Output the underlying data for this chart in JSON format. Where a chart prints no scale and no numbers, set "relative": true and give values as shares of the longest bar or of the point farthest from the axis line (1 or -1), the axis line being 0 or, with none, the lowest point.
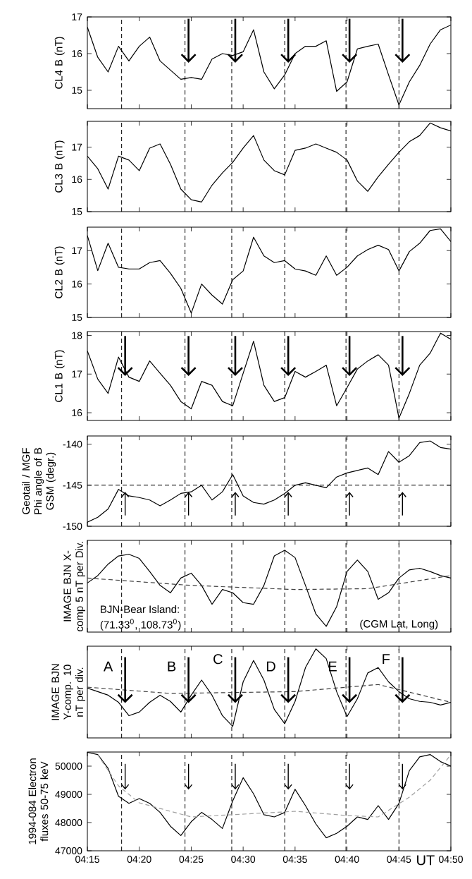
{
  "chart_data": [
    {
      "type": "line",
      "ylabel": "CL4 B (nT)",
      "xlim": [
        4.25,
        4.8333
      ],
      "ylim": [
        14.5,
        17
      ],
      "yticks": [
        15,
        16,
        17
      ],
      "tick_labels": "y",
      "xticks": [
        {
          "value": 4.25,
          "label": null
        },
        {
          "value": 4.3333,
          "label": null
        },
        {
          "value": 4.4167,
          "label": null
        },
        {
          "value": 4.5,
          "label": null
        },
        {
          "value": 4.5833,
          "label": null
        },
        {
          "value": 4.6667,
          "label": null
        },
        {
          "value": 4.75,
          "label": null
        },
        {
          "value": 4.8333,
          "label": null
        }
      ],
      "x": [
        4.25,
        4.2667,
        4.2833,
        4.3,
        4.3167,
        4.3333,
        4.35,
        4.3667,
        4.3833,
        4.4,
        4.4167,
        4.4333,
        4.45,
        4.4667,
        4.4833,
        4.5,
        4.5167,
        4.5333,
        4.55,
        4.5667,
        4.5833,
        4.6,
        4.6167,
        4.6333,
        4.65,
        4.6667,
        4.6833,
        4.7,
        4.7167,
        4.7333,
        4.75,
        4.7667,
        4.7833,
        4.8,
        4.8167,
        4.8333
      ],
      "series": [
        {
          "color": "#000000",
          "values": [
            16.72,
            15.9,
            15.5,
            16.2,
            15.8,
            16.2,
            16.45,
            15.8,
            15.55,
            15.3,
            15.35,
            15.3,
            15.85,
            16.0,
            15.95,
            16.05,
            16.65,
            15.5,
            15.04,
            15.42,
            16.0,
            16.2,
            16.2,
            16.35,
            14.97,
            15.23,
            16.13,
            16.2,
            16.26,
            15.42,
            14.6,
            15.23,
            15.68,
            16.26,
            16.65,
            16.78
          ]
        }
      ],
      "ref_lines": [
        {
          "axis": "x",
          "value": 4.305,
          "line_style": "dashed"
        },
        {
          "axis": "x",
          "value": 4.4067,
          "line_style": "dashed"
        },
        {
          "axis": "x",
          "value": 4.4817,
          "line_style": "dashed"
        },
        {
          "axis": "x",
          "value": 4.5667,
          "line_style": "dashed"
        },
        {
          "axis": "x",
          "value": 4.665,
          "line_style": "dashed"
        },
        {
          "axis": "x",
          "value": 4.75,
          "line_style": "dashed"
        }
      ]
    },
    {
      "type": "line",
      "ylabel": "CL3 B (nT)",
      "xlim": [
        4.25,
        4.8333
      ],
      "ylim": [
        15,
        17.8
      ],
      "yticks": [
        15,
        16,
        17
      ],
      "tick_labels": "y",
      "xticks": [
        {
          "value": 4.25,
          "label": null
        },
        {
          "value": 4.3333,
          "label": null
        },
        {
          "value": 4.4167,
          "label": null
        },
        {
          "value": 4.5,
          "label": null
        },
        {
          "value": 4.5833,
          "label": null
        },
        {
          "value": 4.6667,
          "label": null
        },
        {
          "value": 4.75,
          "label": null
        },
        {
          "value": 4.8333,
          "label": null
        }
      ],
      "x": [
        4.25,
        4.2667,
        4.2833,
        4.3,
        4.3167,
        4.3333,
        4.35,
        4.3667,
        4.3833,
        4.4,
        4.4167,
        4.4333,
        4.45,
        4.4667,
        4.4833,
        4.5,
        4.5167,
        4.5333,
        4.55,
        4.5667,
        4.5833,
        4.6,
        4.6167,
        4.6333,
        4.65,
        4.6667,
        4.6833,
        4.7,
        4.7167,
        4.7333,
        4.75,
        4.7667,
        4.7833,
        4.8,
        4.8167,
        4.8333
      ],
      "series": [
        {
          "color": "#000000",
          "values": [
            16.72,
            16.33,
            15.7,
            16.72,
            16.6,
            16.27,
            16.97,
            17.1,
            16.47,
            15.7,
            15.37,
            15.3,
            15.82,
            16.2,
            16.53,
            16.97,
            17.36,
            16.6,
            16.27,
            16.14,
            16.9,
            16.97,
            17.1,
            16.97,
            16.84,
            16.6,
            15.95,
            15.63,
            16.08,
            16.47,
            16.84,
            17.17,
            17.36,
            17.75,
            17.6,
            17.5
          ]
        }
      ],
      "ref_lines": [
        {
          "axis": "x",
          "value": 4.305,
          "line_style": "dashed"
        },
        {
          "axis": "x",
          "value": 4.4067,
          "line_style": "dashed"
        },
        {
          "axis": "x",
          "value": 4.4817,
          "line_style": "dashed"
        },
        {
          "axis": "x",
          "value": 4.5667,
          "line_style": "dashed"
        },
        {
          "axis": "x",
          "value": 4.665,
          "line_style": "dashed"
        },
        {
          "axis": "x",
          "value": 4.75,
          "line_style": "dashed"
        }
      ]
    },
    {
      "type": "line",
      "ylabel": "CL2 B (nT)",
      "xlim": [
        4.25,
        4.8333
      ],
      "ylim": [
        15,
        17.7
      ],
      "yticks": [
        15,
        16,
        17
      ],
      "tick_labels": "y",
      "xticks": [
        {
          "value": 4.25,
          "label": null
        },
        {
          "value": 4.3333,
          "label": null
        },
        {
          "value": 4.4167,
          "label": null
        },
        {
          "value": 4.5,
          "label": null
        },
        {
          "value": 4.5833,
          "label": null
        },
        {
          "value": 4.6667,
          "label": null
        },
        {
          "value": 4.75,
          "label": null
        },
        {
          "value": 4.8333,
          "label": null
        }
      ],
      "x": [
        4.25,
        4.2667,
        4.2833,
        4.3,
        4.3167,
        4.3333,
        4.35,
        4.3667,
        4.3833,
        4.4,
        4.4167,
        4.4333,
        4.45,
        4.4667,
        4.4833,
        4.5,
        4.5167,
        4.5333,
        4.55,
        4.5667,
        4.5833,
        4.6,
        4.6167,
        4.6333,
        4.65,
        4.6667,
        4.6833,
        4.7,
        4.7167,
        4.7333,
        4.75,
        4.7667,
        4.7833,
        4.8,
        4.8167,
        4.8333
      ],
      "series": [
        {
          "color": "#000000",
          "values": [
            17.45,
            16.4,
            17.22,
            16.5,
            16.45,
            16.45,
            16.64,
            16.7,
            16.32,
            15.87,
            15.13,
            16.0,
            15.67,
            15.4,
            16.13,
            16.39,
            17.4,
            16.84,
            16.64,
            16.7,
            16.45,
            16.39,
            16.26,
            16.84,
            16.26,
            16.5,
            16.84,
            17.03,
            17.16,
            17.03,
            16.39,
            16.97,
            17.22,
            17.6,
            17.65,
            17.27
          ]
        }
      ],
      "ref_lines": [
        {
          "axis": "x",
          "value": 4.305,
          "line_style": "dashed"
        },
        {
          "axis": "x",
          "value": 4.4067,
          "line_style": "dashed"
        },
        {
          "axis": "x",
          "value": 4.4817,
          "line_style": "dashed"
        },
        {
          "axis": "x",
          "value": 4.5667,
          "line_style": "dashed"
        },
        {
          "axis": "x",
          "value": 4.665,
          "line_style": "dashed"
        },
        {
          "axis": "x",
          "value": 4.75,
          "line_style": "dashed"
        }
      ]
    },
    {
      "type": "line",
      "ylabel": "CL1 B (nT)",
      "xlim": [
        4.25,
        4.8333
      ],
      "ylim": [
        15.8,
        18.1
      ],
      "yticks": [
        16,
        17,
        18
      ],
      "tick_labels": "y",
      "xticks": [
        {
          "value": 4.25,
          "label": null
        },
        {
          "value": 4.3333,
          "label": null
        },
        {
          "value": 4.4167,
          "label": null
        },
        {
          "value": 4.5,
          "label": null
        },
        {
          "value": 4.5833,
          "label": null
        },
        {
          "value": 4.6667,
          "label": null
        },
        {
          "value": 4.75,
          "label": null
        },
        {
          "value": 4.8333,
          "label": null
        }
      ],
      "x": [
        4.25,
        4.2667,
        4.2833,
        4.3,
        4.3167,
        4.3333,
        4.35,
        4.3667,
        4.3833,
        4.4,
        4.4167,
        4.4333,
        4.45,
        4.4667,
        4.4833,
        4.5,
        4.5167,
        4.5333,
        4.55,
        4.5667,
        4.5833,
        4.6,
        4.6167,
        4.6333,
        4.65,
        4.6667,
        4.6833,
        4.7,
        4.7167,
        4.7333,
        4.75,
        4.7667,
        4.7833,
        4.8,
        4.8167,
        4.8333
      ],
      "series": [
        {
          "color": "#000000",
          "values": [
            17.6,
            16.87,
            16.5,
            17.44,
            16.92,
            16.81,
            17.34,
            17.02,
            16.71,
            16.29,
            16.1,
            16.81,
            16.71,
            16.29,
            16.18,
            17.02,
            17.85,
            16.71,
            16.29,
            16.39,
            17.07,
            16.92,
            17.07,
            17.23,
            16.18,
            16.65,
            17.13,
            17.34,
            17.5,
            17.23,
            15.86,
            16.5,
            17.23,
            17.54,
            18.06,
            17.9
          ]
        }
      ],
      "ref_lines": [
        {
          "axis": "x",
          "value": 4.305,
          "line_style": "dashed"
        },
        {
          "axis": "x",
          "value": 4.4067,
          "line_style": "dashed"
        },
        {
          "axis": "x",
          "value": 4.4817,
          "line_style": "dashed"
        },
        {
          "axis": "x",
          "value": 4.5667,
          "line_style": "dashed"
        },
        {
          "axis": "x",
          "value": 4.665,
          "line_style": "dashed"
        },
        {
          "axis": "x",
          "value": 4.75,
          "line_style": "dashed"
        }
      ]
    },
    {
      "type": "line",
      "ylabel": "Geotail / MGF Phi angle of B GSM (degr.)",
      "xlim": [
        4.25,
        4.8333
      ],
      "ylim": [
        -150,
        -139
      ],
      "yticks": [
        -150,
        -145,
        -140
      ],
      "tick_labels": "y",
      "xticks": [
        {
          "value": 4.25,
          "label": null
        },
        {
          "value": 4.3333,
          "label": null
        },
        {
          "value": 4.4167,
          "label": null
        },
        {
          "value": 4.5,
          "label": null
        },
        {
          "value": 4.5833,
          "label": null
        },
        {
          "value": 4.6667,
          "label": null
        },
        {
          "value": 4.75,
          "label": null
        },
        {
          "value": 4.8333,
          "label": null
        }
      ],
      "x": [
        4.25,
        4.2667,
        4.2833,
        4.3,
        4.3167,
        4.3333,
        4.35,
        4.3667,
        4.3833,
        4.4,
        4.4167,
        4.4333,
        4.45,
        4.4667,
        4.4833,
        4.5,
        4.5167,
        4.5333,
        4.55,
        4.5667,
        4.5833,
        4.6,
        4.6167,
        4.6333,
        4.65,
        4.6667,
        4.6833,
        4.7,
        4.7167,
        4.7333,
        4.75,
        4.7667,
        4.7833,
        4.8,
        4.8167,
        4.8333
      ],
      "series": [
        {
          "color": "#000000",
          "values": [
            -149.5,
            -148.9,
            -147.9,
            -145.5,
            -146.3,
            -146.5,
            -146.8,
            -147.5,
            -146.8,
            -146.0,
            -145.8,
            -145.0,
            -146.8,
            -145.8,
            -143.7,
            -146.3,
            -147.1,
            -147.3,
            -146.8,
            -146.0,
            -145.0,
            -144.7,
            -145.0,
            -145.3,
            -144.0,
            -143.5,
            -143.2,
            -142.9,
            -143.7,
            -140.9,
            -142.2,
            -141.4,
            -139.8,
            -139.6,
            -140.4,
            -140.6
          ]
        }
      ],
      "ref_lines": [
        {
          "axis": "x",
          "value": 4.305,
          "line_style": "dashed"
        },
        {
          "axis": "x",
          "value": 4.4067,
          "line_style": "dashed"
        },
        {
          "axis": "x",
          "value": 4.4817,
          "line_style": "dashed"
        },
        {
          "axis": "x",
          "value": 4.5667,
          "line_style": "dashed"
        },
        {
          "axis": "x",
          "value": 4.665,
          "line_style": "dashed"
        },
        {
          "axis": "x",
          "value": 4.75,
          "line_style": "dashed"
        },
        {
          "axis": "y",
          "value": -145,
          "line_style": "dashed"
        }
      ]
    },
    {
      "type": "line",
      "relative": true,
      "ylabel": "IMAGE BJN X-comp 5 nT per Div.",
      "xlim": [
        4.25,
        4.8333
      ],
      "tick_labels": false,
      "xticks": [
        {
          "value": 4.25,
          "label": null
        },
        {
          "value": 4.3333,
          "label": null
        },
        {
          "value": 4.4167,
          "label": null
        },
        {
          "value": 4.5,
          "label": null
        },
        {
          "value": 4.5833,
          "label": null
        },
        {
          "value": 4.6667,
          "label": null
        },
        {
          "value": 4.75,
          "label": null
        },
        {
          "value": 4.8333,
          "label": null
        }
      ],
      "x": [
        4.25,
        4.2667,
        4.2833,
        4.3,
        4.3167,
        4.3333,
        4.35,
        4.3667,
        4.3833,
        4.4,
        4.4167,
        4.4333,
        4.45,
        4.4667,
        4.4833,
        4.5,
        4.5167,
        4.5333,
        4.55,
        4.5667,
        4.5833,
        4.6,
        4.6167,
        4.6333,
        4.65,
        4.6667,
        4.6833,
        4.7,
        4.7167,
        4.7333,
        4.75,
        4.7667,
        4.7833,
        4.8,
        4.8167,
        4.8333
      ],
      "series": [
        {
          "color": "#000000",
          "values": [
            0.6,
            0.69,
            0.83,
            0.93,
            0.95,
            0.9,
            0.74,
            0.57,
            0.48,
            0.66,
            0.72,
            0.57,
            0.34,
            0.52,
            0.48,
            0.36,
            0.34,
            0.57,
            0.93,
            1,
            0.91,
            0.57,
            0.22,
            0.07,
            0.31,
            0.74,
            0.88,
            0.74,
            0.4,
            0.48,
            0.66,
            0.76,
            0.78,
            0.74,
            0.69,
            0.66
          ]
        },
        {
          "color": "#404040",
          "line_style": "dashed",
          "x": [
            4.25,
            4.4167,
            4.5833,
            4.7,
            4.8333
          ],
          "values": [
            0.66,
            0.57,
            0.52,
            0.53,
            0.69
          ]
        }
      ],
      "annotations": [
        "BJN-Bear Island:",
        "(71.33$^{0}$, 108.73$^{0}$)",
        "(CGM Lat, Long)"
      ],
      "ref_lines": [
        {
          "axis": "x",
          "value": 4.305,
          "line_style": "dashed"
        },
        {
          "axis": "x",
          "value": 4.4067,
          "line_style": "dashed"
        },
        {
          "axis": "x",
          "value": 4.4817,
          "line_style": "dashed"
        },
        {
          "axis": "x",
          "value": 4.5667,
          "line_style": "dashed"
        },
        {
          "axis": "x",
          "value": 4.665,
          "line_style": "dashed"
        },
        {
          "axis": "x",
          "value": 4.75,
          "line_style": "dashed"
        }
      ]
    },
    {
      "type": "line",
      "relative": true,
      "ylabel": "IMAGE BJN Y-comp. 10 nT per div.",
      "xlim": [
        4.25,
        4.8333
      ],
      "tick_labels": false,
      "xticks": [
        {
          "value": 4.25,
          "label": null
        },
        {
          "value": 4.3333,
          "label": null
        },
        {
          "value": 4.4167,
          "label": null
        },
        {
          "value": 4.5,
          "label": null
        },
        {
          "value": 4.5833,
          "label": null
        },
        {
          "value": 4.6667,
          "label": null
        },
        {
          "value": 4.75,
          "label": null
        },
        {
          "value": 4.8333,
          "label": null
        }
      ],
      "x": [
        4.25,
        4.2667,
        4.2833,
        4.3,
        4.3167,
        4.3333,
        4.35,
        4.3667,
        4.3833,
        4.4,
        4.4167,
        4.4333,
        4.45,
        4.4667,
        4.4833,
        4.5,
        4.5167,
        4.5333,
        4.55,
        4.5667,
        4.5833,
        4.6,
        4.6167,
        4.6333,
        4.65,
        4.6667,
        4.6833,
        4.7,
        4.7167,
        4.7333,
        4.75,
        4.7667,
        4.7833,
        4.8,
        4.8167,
        4.8333
      ],
      "series": [
        {
          "color": "#000000",
          "values": [
            0.56,
            0.52,
            0.48,
            0.4,
            0.25,
            0.29,
            0.4,
            0.48,
            0.41,
            0.29,
            0.48,
            0.65,
            0.48,
            0.25,
            0.13,
            0.63,
            0.87,
            0.65,
            0.32,
            0.16,
            0.41,
            0.79,
            1,
            0.89,
            0.52,
            0.24,
            0.44,
            0.73,
            0.79,
            0.63,
            0.52,
            0.44,
            0.41,
            0.4,
            0.37,
            0.4
          ]
        },
        {
          "color": "#404040",
          "line_style": "dashed",
          "x": [
            4.25,
            4.3833,
            4.5833,
            4.7167,
            4.8333
          ],
          "values": [
            0.57,
            0.5,
            0.52,
            0.6,
            0.4
          ]
        }
      ],
      "annotations": [
        "A",
        "B",
        "C",
        "D",
        "E",
        "F"
      ],
      "ref_lines": [
        {
          "axis": "x",
          "value": 4.305,
          "line_style": "dashed"
        },
        {
          "axis": "x",
          "value": 4.4067,
          "line_style": "dashed"
        },
        {
          "axis": "x",
          "value": 4.4817,
          "line_style": "dashed"
        },
        {
          "axis": "x",
          "value": 4.5667,
          "line_style": "dashed"
        },
        {
          "axis": "x",
          "value": 4.665,
          "line_style": "dashed"
        },
        {
          "axis": "x",
          "value": 4.75,
          "line_style": "dashed"
        }
      ]
    },
    {
      "type": "line",
      "ylabel": "1994-084 Electron fluxes 50-75 keV",
      "xlabel": "UT",
      "xlim": [
        4.25,
        4.8333
      ],
      "ylim": [
        47000,
        50500
      ],
      "yticks": [
        47000,
        48000,
        49000,
        50000
      ],
      "xticks": [
        {
          "value": 4.25,
          "label": "04:15"
        },
        {
          "value": 4.3333,
          "label": "04:20"
        },
        {
          "value": 4.4167,
          "label": "04:25"
        },
        {
          "value": 4.5,
          "label": "04:30"
        },
        {
          "value": 4.5833,
          "label": "04:35"
        },
        {
          "value": 4.6667,
          "label": "04:40"
        },
        {
          "value": 4.75,
          "label": "04:45"
        },
        {
          "value": 4.8333,
          "label": "04:50"
        }
      ],
      "x": [
        4.25,
        4.2667,
        4.2833,
        4.3,
        4.3167,
        4.3333,
        4.35,
        4.3667,
        4.3833,
        4.4,
        4.4167,
        4.4333,
        4.45,
        4.4667,
        4.4833,
        4.5,
        4.5167,
        4.5333,
        4.55,
        4.5667,
        4.5833,
        4.6,
        4.6167,
        4.6333,
        4.65,
        4.6667,
        4.6833,
        4.7,
        4.7167,
        4.7333,
        4.75,
        4.7667,
        4.7833,
        4.8,
        4.8167,
        4.8333
      ],
      "series": [
        {
          "color": "#000000",
          "values": [
            50490,
            50410,
            49920,
            48930,
            48680,
            48850,
            48680,
            48360,
            47870,
            47540,
            48030,
            48360,
            48110,
            47790,
            48770,
            49590,
            49020,
            48280,
            48200,
            48360,
            49180,
            48600,
            47950,
            47460,
            47620,
            47870,
            48200,
            48110,
            48600,
            48110,
            48680,
            49840,
            50330,
            50410,
            50160,
            50000
          ]
        },
        {
          "color": "#a0a0a0",
          "line_style": "dashed",
          "x": [
            4.2667,
            4.3,
            4.3333,
            4.4167,
            4.5,
            4.5833,
            4.6667,
            4.7167,
            4.7667,
            4.8,
            4.8333
          ],
          "values": [
            50400,
            49300,
            48700,
            48200,
            48300,
            48400,
            48250,
            48200,
            48900,
            49500,
            50400
          ]
        }
      ],
      "ref_lines": [
        {
          "axis": "x",
          "value": 4.305,
          "line_style": "dashed"
        },
        {
          "axis": "x",
          "value": 4.4067,
          "line_style": "dashed"
        },
        {
          "axis": "x",
          "value": 4.4817,
          "line_style": "dashed"
        },
        {
          "axis": "x",
          "value": 4.5667,
          "line_style": "dashed"
        },
        {
          "axis": "x",
          "value": 4.665,
          "line_style": "dashed"
        },
        {
          "axis": "x",
          "value": 4.75,
          "line_style": "dashed"
        }
      ]
    }
  ]
}
